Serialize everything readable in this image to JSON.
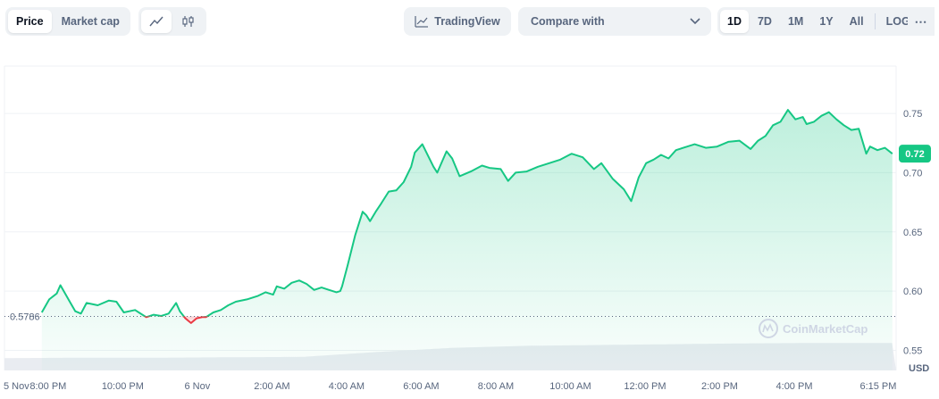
{
  "toolbar": {
    "price_label": "Price",
    "market_cap_label": "Market cap",
    "line_icon": "line-chart-icon",
    "candle_icon": "candlestick-icon",
    "tradingview_label": "TradingView",
    "compare_label": "Compare with",
    "ranges": [
      "1D",
      "7D",
      "1M",
      "1Y",
      "All"
    ],
    "active_range": "1D",
    "log_label": "LOG",
    "more_label": "⋯"
  },
  "watermark": "CoinMarketCap",
  "colors": {
    "up": "#16c784",
    "down": "#ea3943",
    "grid": "#eff2f5",
    "text": "#58667e",
    "current_badge": "#16c784"
  },
  "chart_data": {
    "type": "area",
    "currency_label": "USD",
    "baseline": 0.5786,
    "baseline_label": "0.5786",
    "current_label": "0.72",
    "current_value": 0.716,
    "ylim": [
      0.533,
      0.79
    ],
    "y_ticks": [
      0.75,
      0.7,
      0.65,
      0.6,
      0.55
    ],
    "y_tick_labels": [
      "0.75",
      "0.70",
      "0.65",
      "0.60",
      "0.55"
    ],
    "x_ticks": [
      {
        "label": "5 Nov",
        "t": 0.0
      },
      {
        "label": "8:00 PM",
        "t": 1.17
      },
      {
        "label": "10:00 PM",
        "t": 3.17
      },
      {
        "label": "6 Nov",
        "t": 5.17
      },
      {
        "label": "2:00 AM",
        "t": 7.17
      },
      {
        "label": "4:00 AM",
        "t": 9.17
      },
      {
        "label": "6:00 AM",
        "t": 11.17
      },
      {
        "label": "8:00 AM",
        "t": 13.17
      },
      {
        "label": "10:00 AM",
        "t": 15.17
      },
      {
        "label": "12:00 PM",
        "t": 17.17
      },
      {
        "label": "2:00 PM",
        "t": 19.17
      },
      {
        "label": "4:00 PM",
        "t": 21.17
      },
      {
        "label": "6:15 PM",
        "t": 23.42
      }
    ],
    "t_max": 23.9,
    "series": [
      {
        "t": [
          1.0,
          1.2,
          1.4,
          1.5,
          1.75,
          1.9,
          2.05,
          2.2,
          2.5,
          2.8,
          3.0,
          3.2,
          3.5,
          3.6,
          3.8,
          4.0,
          4.2,
          4.4,
          4.6,
          4.7,
          4.85,
          5.0,
          5.15,
          5.3,
          5.4,
          5.6,
          5.8,
          6.0,
          6.2,
          6.5,
          6.8,
          7.0,
          7.2,
          7.3,
          7.5,
          7.7,
          7.9,
          8.1,
          8.3,
          8.5,
          8.7,
          8.9,
          9.0,
          9.05,
          9.2,
          9.4,
          9.6,
          9.7,
          9.8,
          9.95,
          10.1,
          10.3,
          10.5,
          10.7,
          10.9,
          11.0,
          11.2,
          11.5,
          11.6,
          11.85,
          12.0,
          12.2,
          12.5,
          12.8,
          13.0,
          13.3,
          13.5,
          13.7,
          14.0,
          14.3,
          14.6,
          14.9,
          15.2,
          15.5,
          15.8,
          16.0,
          16.3,
          16.6,
          16.8,
          17.0,
          17.2,
          17.4,
          17.6,
          17.8,
          18.0,
          18.3,
          18.5,
          18.8,
          19.1,
          19.4,
          19.7,
          20.0,
          20.2,
          20.4,
          20.6,
          20.8,
          21.0,
          21.2,
          21.4,
          21.5,
          21.7,
          21.9,
          22.1,
          22.3,
          22.5,
          22.7,
          22.9,
          23.1,
          23.2,
          23.4,
          23.6,
          23.8
        ],
        "v": [
          0.582,
          0.593,
          0.598,
          0.605,
          0.591,
          0.583,
          0.581,
          0.59,
          0.588,
          0.592,
          0.591,
          0.582,
          0.584,
          0.582,
          0.578,
          0.58,
          0.579,
          0.581,
          0.59,
          0.583,
          0.577,
          0.573,
          0.577,
          0.578,
          0.578,
          0.582,
          0.584,
          0.588,
          0.591,
          0.593,
          0.596,
          0.599,
          0.597,
          0.604,
          0.602,
          0.607,
          0.609,
          0.606,
          0.601,
          0.603,
          0.601,
          0.599,
          0.6,
          0.604,
          0.622,
          0.647,
          0.667,
          0.664,
          0.659,
          0.667,
          0.674,
          0.684,
          0.685,
          0.692,
          0.705,
          0.717,
          0.724,
          0.705,
          0.7,
          0.718,
          0.712,
          0.697,
          0.701,
          0.706,
          0.704,
          0.703,
          0.693,
          0.7,
          0.701,
          0.705,
          0.708,
          0.711,
          0.716,
          0.713,
          0.703,
          0.708,
          0.695,
          0.686,
          0.676,
          0.696,
          0.708,
          0.711,
          0.715,
          0.712,
          0.719,
          0.722,
          0.724,
          0.721,
          0.722,
          0.726,
          0.727,
          0.72,
          0.727,
          0.731,
          0.74,
          0.743,
          0.753,
          0.745,
          0.747,
          0.741,
          0.743,
          0.748,
          0.751,
          0.745,
          0.74,
          0.736,
          0.737,
          0.716,
          0.722,
          0.719,
          0.721,
          0.716
        ]
      }
    ],
    "volume": {
      "t": [
        0,
        2,
        4,
        6,
        8,
        10,
        12,
        14,
        16,
        18,
        20,
        22,
        23.9
      ],
      "v": [
        0.3,
        0.31,
        0.31,
        0.32,
        0.33,
        0.45,
        0.55,
        0.6,
        0.62,
        0.64,
        0.66,
        0.67,
        0.67
      ]
    }
  }
}
